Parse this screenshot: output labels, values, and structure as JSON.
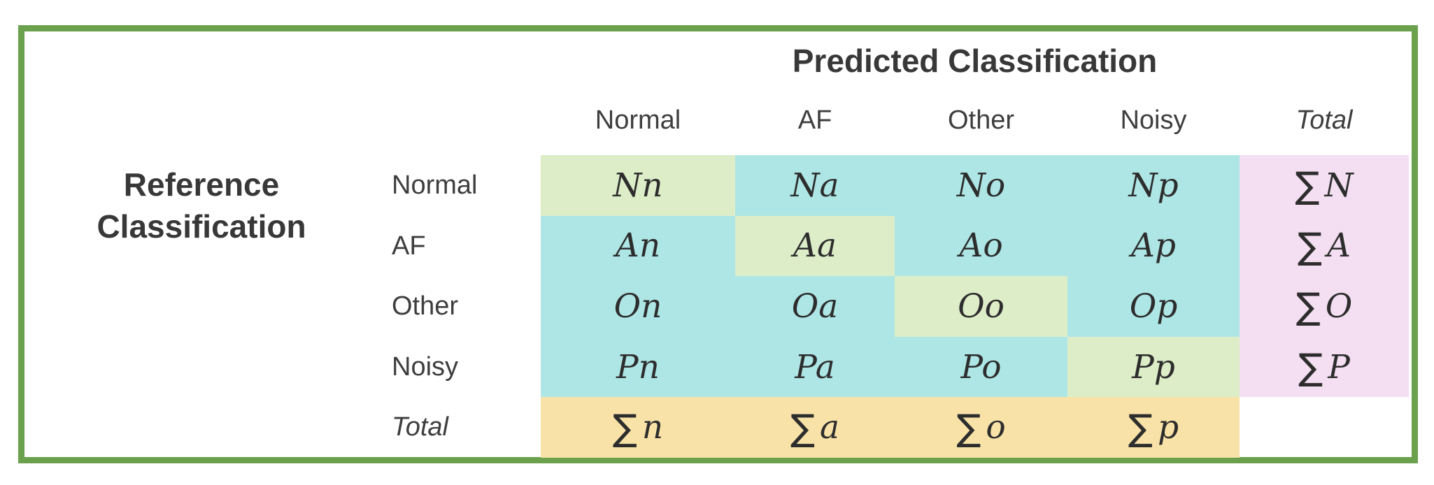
{
  "figure": {
    "pred_axis_label": "Predicted Classification",
    "ref_axis_label_line1": "Reference",
    "ref_axis_label_line2": "Classification",
    "col_headers": [
      "Normal",
      "AF",
      "Other",
      "Noisy",
      "Total"
    ],
    "row_headers": [
      "Normal",
      "AF",
      "Other",
      "Noisy",
      "Total"
    ],
    "rows": [
      {
        "cells": [
          {
            "sum": "",
            "var": "Nn"
          },
          {
            "sum": "",
            "var": "Na"
          },
          {
            "sum": "",
            "var": "No"
          },
          {
            "sum": "",
            "var": "Np"
          },
          {
            "sum": "∑",
            "var": "N"
          }
        ]
      },
      {
        "cells": [
          {
            "sum": "",
            "var": "An"
          },
          {
            "sum": "",
            "var": "Aa"
          },
          {
            "sum": "",
            "var": "Ao"
          },
          {
            "sum": "",
            "var": "Ap"
          },
          {
            "sum": "∑",
            "var": "A"
          }
        ]
      },
      {
        "cells": [
          {
            "sum": "",
            "var": "On"
          },
          {
            "sum": "",
            "var": "Oa"
          },
          {
            "sum": "",
            "var": "Oo"
          },
          {
            "sum": "",
            "var": "Op"
          },
          {
            "sum": "∑",
            "var": "O"
          }
        ]
      },
      {
        "cells": [
          {
            "sum": "",
            "var": "Pn"
          },
          {
            "sum": "",
            "var": "Pa"
          },
          {
            "sum": "",
            "var": "Po"
          },
          {
            "sum": "",
            "var": "Pp"
          },
          {
            "sum": "∑",
            "var": "P"
          }
        ]
      },
      {
        "cells": [
          {
            "sum": "∑",
            "var": "n"
          },
          {
            "sum": "∑",
            "var": "a"
          },
          {
            "sum": "∑",
            "var": "o"
          },
          {
            "sum": "∑",
            "var": "p"
          },
          {
            "sum": "",
            "var": ""
          }
        ]
      }
    ]
  },
  "colors": {
    "frame": "#6ba14c",
    "diagonal": "#dcedc8",
    "offdiag": "#aee6e6",
    "total_col": "#f4def2",
    "total_row": "#f8e2a7"
  }
}
